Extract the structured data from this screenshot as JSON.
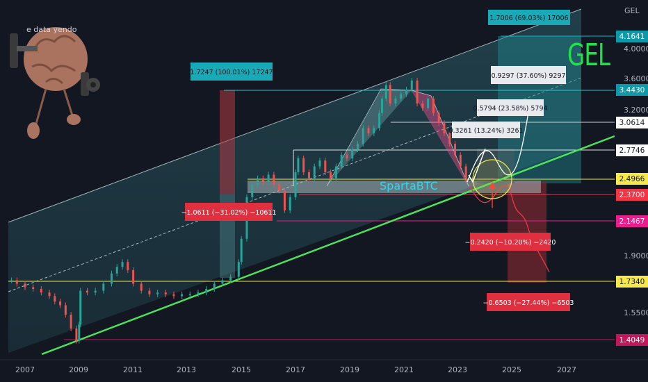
{
  "header": {
    "unit_label": "GEL",
    "brand_title": "GEL",
    "watermark": "SpartaBTC",
    "overlay_label": "e data yendo"
  },
  "chart_data": {
    "type": "candlestick",
    "title": "GEL",
    "x_ticks": [
      "2007",
      "2009",
      "2011",
      "2013",
      "2015",
      "2017",
      "2019",
      "2021",
      "2023",
      "2025",
      "2027"
    ],
    "y_ticks": [
      4.0,
      3.6,
      3.2,
      1.9,
      1.55
    ],
    "y_tick_labels": [
      "4.0000",
      "3.6000",
      "3.2000",
      "1.9000",
      "1.5500"
    ],
    "y_scale": "log",
    "price_levels": [
      {
        "value": 4.1641,
        "label": "4.1641",
        "color": "#00bcd4"
      },
      {
        "value": 3.443,
        "label": "3.4430",
        "color": "#00bcd4"
      },
      {
        "value": 3.0614,
        "label": "3.0614",
        "color": "#ffffff"
      },
      {
        "value": 2.7746,
        "label": "2.7746",
        "color": "#ffffff"
      },
      {
        "value": 2.4966,
        "label": "2.4966",
        "color": "#ffeb3b"
      },
      {
        "value": 2.37,
        "label": "2.3700",
        "color": "#f23645"
      },
      {
        "value": 2.1467,
        "label": "2.1467",
        "color": "#e91e8c"
      },
      {
        "value": 1.734,
        "label": "1.7340",
        "color": "#ffeb3b"
      },
      {
        "value": 1.4049,
        "label": "1.4049",
        "color": "#f23645"
      }
    ],
    "measurements": [
      {
        "text": "1.7006 (69.03%) 17006",
        "color": "#00bcd4"
      },
      {
        "text": "1.7247 (100.01%) 17247",
        "color": "#00bcd4"
      },
      {
        "text": "0.9297 (37.60%) 9297",
        "color": "#ffffff"
      },
      {
        "text": "0.5794 (23.58%) 5794",
        "color": "#ffffff"
      },
      {
        "text": "0.3261 (13.24%) 3261",
        "color": "#ffffff"
      },
      {
        "text": "−1.0611 (−31.02%) −10611",
        "color": "#f23645"
      },
      {
        "text": "−0.2420 (−10.20%) −2420",
        "color": "#f23645"
      },
      {
        "text": "−0.6503 (−27.44%) −6503",
        "color": "#f23645"
      }
    ],
    "series": [
      {
        "values": [
          [
            2006.5,
            1.74
          ],
          [
            2006.7,
            1.72
          ],
          [
            2007.0,
            1.7
          ],
          [
            2007.3,
            1.69
          ],
          [
            2007.6,
            1.67
          ],
          [
            2007.9,
            1.65
          ],
          [
            2008.1,
            1.62
          ],
          [
            2008.3,
            1.6
          ],
          [
            2008.5,
            1.55
          ],
          [
            2008.7,
            1.48
          ],
          [
            2008.9,
            1.42
          ],
          [
            2009.0,
            1.5
          ],
          [
            2009.05,
            1.68
          ],
          [
            2009.3,
            1.67
          ],
          [
            2009.6,
            1.68
          ],
          [
            2009.9,
            1.72
          ],
          [
            2010.2,
            1.78
          ],
          [
            2010.4,
            1.82
          ],
          [
            2010.6,
            1.85
          ],
          [
            2010.8,
            1.8
          ],
          [
            2011.0,
            1.72
          ],
          [
            2011.3,
            1.68
          ],
          [
            2011.6,
            1.66
          ],
          [
            2011.9,
            1.67
          ],
          [
            2012.2,
            1.66
          ],
          [
            2012.5,
            1.65
          ],
          [
            2012.8,
            1.66
          ],
          [
            2013.1,
            1.66
          ],
          [
            2013.4,
            1.67
          ],
          [
            2013.7,
            1.69
          ],
          [
            2014.0,
            1.72
          ],
          [
            2014.3,
            1.74
          ],
          [
            2014.6,
            1.76
          ],
          [
            2014.9,
            1.85
          ],
          [
            2015.0,
            2.0
          ],
          [
            2015.2,
            2.3
          ],
          [
            2015.4,
            2.4
          ],
          [
            2015.6,
            2.45
          ],
          [
            2015.8,
            2.42
          ],
          [
            2016.0,
            2.48
          ],
          [
            2016.2,
            2.4
          ],
          [
            2016.4,
            2.35
          ],
          [
            2016.6,
            2.2
          ],
          [
            2016.8,
            2.3
          ],
          [
            2017.0,
            2.5
          ],
          [
            2017.1,
            2.62
          ],
          [
            2017.3,
            2.5
          ],
          [
            2017.5,
            2.45
          ],
          [
            2017.7,
            2.55
          ],
          [
            2017.9,
            2.6
          ],
          [
            2018.1,
            2.5
          ],
          [
            2018.3,
            2.45
          ],
          [
            2018.5,
            2.55
          ],
          [
            2018.7,
            2.65
          ],
          [
            2018.9,
            2.62
          ],
          [
            2019.1,
            2.7
          ],
          [
            2019.3,
            2.75
          ],
          [
            2019.5,
            2.9
          ],
          [
            2019.7,
            2.85
          ],
          [
            2019.9,
            2.9
          ],
          [
            2020.1,
            3.05
          ],
          [
            2020.2,
            3.2
          ],
          [
            2020.35,
            3.35
          ],
          [
            2020.5,
            3.15
          ],
          [
            2020.7,
            3.2
          ],
          [
            2020.9,
            3.25
          ],
          [
            2021.1,
            3.3
          ],
          [
            2021.3,
            3.4
          ],
          [
            2021.5,
            3.15
          ],
          [
            2021.7,
            3.1
          ],
          [
            2021.9,
            3.2
          ],
          [
            2022.1,
            3.05
          ],
          [
            2022.3,
            2.95
          ],
          [
            2022.5,
            2.85
          ],
          [
            2022.7,
            2.75
          ],
          [
            2022.9,
            2.65
          ],
          [
            2023.1,
            2.55
          ],
          [
            2023.3,
            2.45
          ]
        ]
      }
    ]
  }
}
